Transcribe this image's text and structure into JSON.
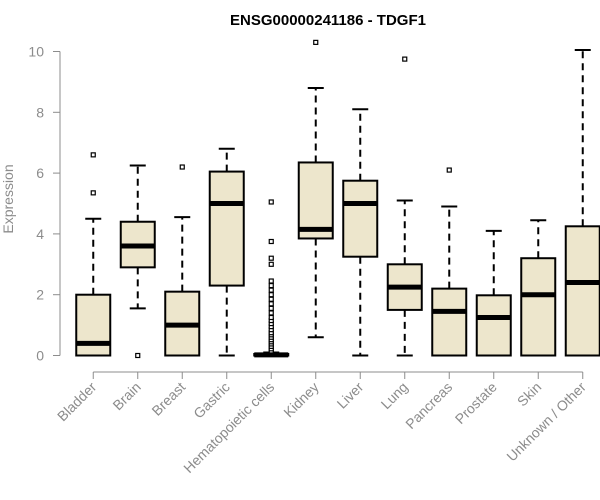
{
  "chart_data": {
    "type": "boxplot",
    "title": "ENSG00000241186 - TDGF1",
    "xlabel": "",
    "ylabel": "Expression",
    "ylim": [
      0,
      10.5
    ],
    "yticks": [
      0,
      2,
      4,
      6,
      8,
      10
    ],
    "grid": false,
    "colors": {
      "box_fill": "#ede6cc",
      "stroke": "#000000",
      "axis_text": "#8c8c8c"
    },
    "categories": [
      "Bladder",
      "Brain",
      "Breast",
      "Gastric",
      "Hematopoietic cells",
      "Kidney",
      "Liver",
      "Lung",
      "Pancreas",
      "Prostate",
      "Skin",
      "Unknown / Other"
    ],
    "boxes": [
      {
        "category": "Bladder",
        "whisker_low": 0,
        "q1": 0,
        "median": 0.4,
        "q3": 2.0,
        "whisker_high": 4.5,
        "outliers": [
          5.35,
          6.6
        ]
      },
      {
        "category": "Brain",
        "whisker_low": 1.55,
        "q1": 2.9,
        "median": 3.6,
        "q3": 4.4,
        "whisker_high": 6.25,
        "outliers": [
          0.0
        ]
      },
      {
        "category": "Breast",
        "whisker_low": 0,
        "q1": 0,
        "median": 1.0,
        "q3": 2.1,
        "whisker_high": 4.55,
        "outliers": [
          6.2
        ]
      },
      {
        "category": "Gastric",
        "whisker_low": 0,
        "q1": 2.3,
        "median": 5.0,
        "q3": 6.05,
        "whisker_high": 6.8,
        "outliers": []
      },
      {
        "category": "Hematopoietic cells",
        "whisker_low": 0,
        "q1": 0,
        "median": 0.02,
        "q3": 0.05,
        "whisker_high": 0.1,
        "outliers": [
          0.15,
          0.22,
          0.3,
          0.38,
          0.45,
          0.52,
          0.6,
          0.68,
          0.75,
          0.85,
          0.95,
          1.05,
          1.15,
          1.25,
          1.4,
          1.55,
          1.7,
          1.85,
          2.0,
          2.15,
          2.3,
          2.45,
          3.0,
          3.2,
          3.75,
          5.05
        ]
      },
      {
        "category": "Kidney",
        "whisker_low": 0.6,
        "q1": 3.85,
        "median": 4.15,
        "q3": 6.35,
        "whisker_high": 8.8,
        "outliers": [
          10.3
        ]
      },
      {
        "category": "Liver",
        "whisker_low": 0,
        "q1": 3.25,
        "median": 5.0,
        "q3": 5.75,
        "whisker_high": 8.1,
        "outliers": []
      },
      {
        "category": "Lung",
        "whisker_low": 0,
        "q1": 1.5,
        "median": 2.25,
        "q3": 3.0,
        "whisker_high": 5.1,
        "outliers": [
          9.75
        ]
      },
      {
        "category": "Pancreas",
        "whisker_low": 0,
        "q1": 0,
        "median": 1.45,
        "q3": 2.2,
        "whisker_high": 4.9,
        "outliers": [
          6.1
        ]
      },
      {
        "category": "Prostate",
        "whisker_low": 0,
        "q1": 0,
        "median": 1.25,
        "q3": 1.98,
        "whisker_high": 4.1,
        "outliers": []
      },
      {
        "category": "Skin",
        "whisker_low": 0,
        "q1": 0,
        "median": 2.0,
        "q3": 3.2,
        "whisker_high": 4.45,
        "outliers": []
      },
      {
        "category": "Unknown / Other",
        "whisker_low": 0,
        "q1": 0,
        "median": 2.4,
        "q3": 4.25,
        "whisker_high": 10.05,
        "outliers": []
      }
    ]
  }
}
